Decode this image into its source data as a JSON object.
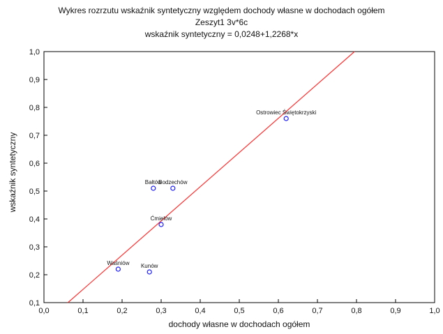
{
  "chart_data": {
    "type": "scatter",
    "title": "Wykres rozrzutu   wskaźnik syntetyczny względem dochody własne w dochodach ogółem",
    "subtitle": "Zeszyt1 3v*6c",
    "equation": "wskaźnik syntetyczny = 0,0248+1,2268*x",
    "xlabel": "dochody własne w dochodach ogółem",
    "ylabel": "wskaźnik syntetyczny",
    "xlim": [
      0.0,
      1.0
    ],
    "ylim": [
      0.1,
      1.0
    ],
    "x_ticks": [
      "0,0",
      "0,1",
      "0,2",
      "0,3",
      "0,4",
      "0,5",
      "0,6",
      "0,7",
      "0,8",
      "0,9",
      "1,0"
    ],
    "y_ticks": [
      "0,1",
      "0,2",
      "0,3",
      "0,4",
      "0,5",
      "0,6",
      "0,7",
      "0,8",
      "0,9",
      "1,0"
    ],
    "grid": false,
    "regression": {
      "intercept": 0.0248,
      "slope": 1.2268
    },
    "points": [
      {
        "label": "Ostrowiec Świętokrzyski",
        "x": 0.62,
        "y": 0.76
      },
      {
        "label": "Bałtów",
        "x": 0.28,
        "y": 0.51
      },
      {
        "label": "Bodzechów",
        "x": 0.33,
        "y": 0.51
      },
      {
        "label": "Ćmielów",
        "x": 0.3,
        "y": 0.38
      },
      {
        "label": "Waśniów",
        "x": 0.19,
        "y": 0.22
      },
      {
        "label": "Kunów",
        "x": 0.27,
        "y": 0.21
      }
    ],
    "colors": {
      "points": "#1a1aff",
      "line": "#ff3030",
      "axis": "#000000"
    }
  }
}
